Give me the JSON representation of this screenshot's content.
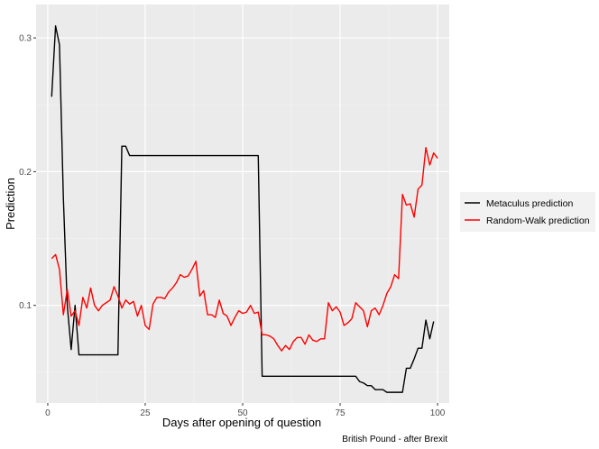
{
  "chart_data": {
    "type": "line",
    "xlabel": "Days after opening of question",
    "ylabel": "Prediction",
    "caption": "British Pound - after Brexit",
    "xlim": [
      -3,
      103
    ],
    "ylim": [
      0.027,
      0.325
    ],
    "xticks": [
      0,
      25,
      50,
      75,
      100
    ],
    "yticks": [
      0.1,
      0.2,
      0.3
    ],
    "grid": true,
    "legend_position": "right",
    "series": [
      {
        "name": "Metaculus prediction",
        "color": "#000000",
        "points": [
          [
            1,
            0.256
          ],
          [
            2,
            0.309
          ],
          [
            3,
            0.295
          ],
          [
            4,
            0.18
          ],
          [
            5,
            0.1
          ],
          [
            6,
            0.067
          ],
          [
            7,
            0.1
          ],
          [
            8,
            0.063
          ],
          [
            10,
            0.063
          ],
          [
            15,
            0.063
          ],
          [
            18,
            0.063
          ],
          [
            19,
            0.219
          ],
          [
            20,
            0.219
          ],
          [
            21,
            0.212
          ],
          [
            30,
            0.212
          ],
          [
            40,
            0.212
          ],
          [
            50,
            0.212
          ],
          [
            54,
            0.212
          ],
          [
            55,
            0.047
          ],
          [
            60,
            0.047
          ],
          [
            70,
            0.047
          ],
          [
            79,
            0.047
          ],
          [
            80,
            0.043
          ],
          [
            81,
            0.042
          ],
          [
            82,
            0.04
          ],
          [
            83,
            0.04
          ],
          [
            84,
            0.037
          ],
          [
            85,
            0.037
          ],
          [
            86,
            0.037
          ],
          [
            87,
            0.035
          ],
          [
            88,
            0.035
          ],
          [
            90,
            0.035
          ],
          [
            91,
            0.035
          ],
          [
            92,
            0.053
          ],
          [
            93,
            0.053
          ],
          [
            94,
            0.06
          ],
          [
            95,
            0.068
          ],
          [
            96,
            0.068
          ],
          [
            97,
            0.089
          ],
          [
            98,
            0.075
          ],
          [
            99,
            0.088
          ]
        ]
      },
      {
        "name": "Random-Walk prediction",
        "color": "#ff0000",
        "points": [
          [
            1,
            0.135
          ],
          [
            2,
            0.138
          ],
          [
            3,
            0.127
          ],
          [
            4,
            0.093
          ],
          [
            5,
            0.112
          ],
          [
            6,
            0.092
          ],
          [
            7,
            0.096
          ],
          [
            8,
            0.085
          ],
          [
            9,
            0.106
          ],
          [
            10,
            0.098
          ],
          [
            11,
            0.113
          ],
          [
            12,
            0.1
          ],
          [
            13,
            0.096
          ],
          [
            14,
            0.1
          ],
          [
            15,
            0.102
          ],
          [
            16,
            0.104
          ],
          [
            17,
            0.114
          ],
          [
            18,
            0.107
          ],
          [
            19,
            0.098
          ],
          [
            20,
            0.104
          ],
          [
            21,
            0.101
          ],
          [
            22,
            0.103
          ],
          [
            23,
            0.092
          ],
          [
            24,
            0.1
          ],
          [
            25,
            0.085
          ],
          [
            26,
            0.082
          ],
          [
            27,
            0.101
          ],
          [
            28,
            0.106
          ],
          [
            29,
            0.106
          ],
          [
            30,
            0.105
          ],
          [
            31,
            0.11
          ],
          [
            32,
            0.113
          ],
          [
            33,
            0.117
          ],
          [
            34,
            0.123
          ],
          [
            35,
            0.121
          ],
          [
            36,
            0.122
          ],
          [
            37,
            0.127
          ],
          [
            38,
            0.133
          ],
          [
            39,
            0.107
          ],
          [
            40,
            0.111
          ],
          [
            41,
            0.093
          ],
          [
            42,
            0.093
          ],
          [
            43,
            0.091
          ],
          [
            44,
            0.104
          ],
          [
            45,
            0.094
          ],
          [
            46,
            0.092
          ],
          [
            47,
            0.085
          ],
          [
            48,
            0.091
          ],
          [
            49,
            0.096
          ],
          [
            50,
            0.094
          ],
          [
            51,
            0.095
          ],
          [
            52,
            0.1
          ],
          [
            53,
            0.094
          ],
          [
            54,
            0.095
          ],
          [
            55,
            0.078
          ],
          [
            56,
            0.078
          ],
          [
            57,
            0.077
          ],
          [
            58,
            0.075
          ],
          [
            59,
            0.07
          ],
          [
            60,
            0.066
          ],
          [
            61,
            0.07
          ],
          [
            62,
            0.067
          ],
          [
            63,
            0.073
          ],
          [
            64,
            0.076
          ],
          [
            65,
            0.076
          ],
          [
            66,
            0.071
          ],
          [
            67,
            0.078
          ],
          [
            68,
            0.074
          ],
          [
            69,
            0.073
          ],
          [
            70,
            0.075
          ],
          [
            71,
            0.075
          ],
          [
            72,
            0.102
          ],
          [
            73,
            0.096
          ],
          [
            74,
            0.099
          ],
          [
            75,
            0.095
          ],
          [
            76,
            0.085
          ],
          [
            77,
            0.087
          ],
          [
            78,
            0.09
          ],
          [
            79,
            0.102
          ],
          [
            80,
            0.099
          ],
          [
            81,
            0.096
          ],
          [
            82,
            0.084
          ],
          [
            83,
            0.096
          ],
          [
            84,
            0.098
          ],
          [
            85,
            0.093
          ],
          [
            86,
            0.1
          ],
          [
            87,
            0.109
          ],
          [
            88,
            0.114
          ],
          [
            89,
            0.123
          ],
          [
            90,
            0.12
          ],
          [
            91,
            0.183
          ],
          [
            92,
            0.175
          ],
          [
            93,
            0.176
          ],
          [
            94,
            0.166
          ],
          [
            95,
            0.187
          ],
          [
            96,
            0.19
          ],
          [
            97,
            0.218
          ],
          [
            98,
            0.205
          ],
          [
            99,
            0.214
          ],
          [
            100,
            0.21
          ]
        ]
      }
    ]
  }
}
